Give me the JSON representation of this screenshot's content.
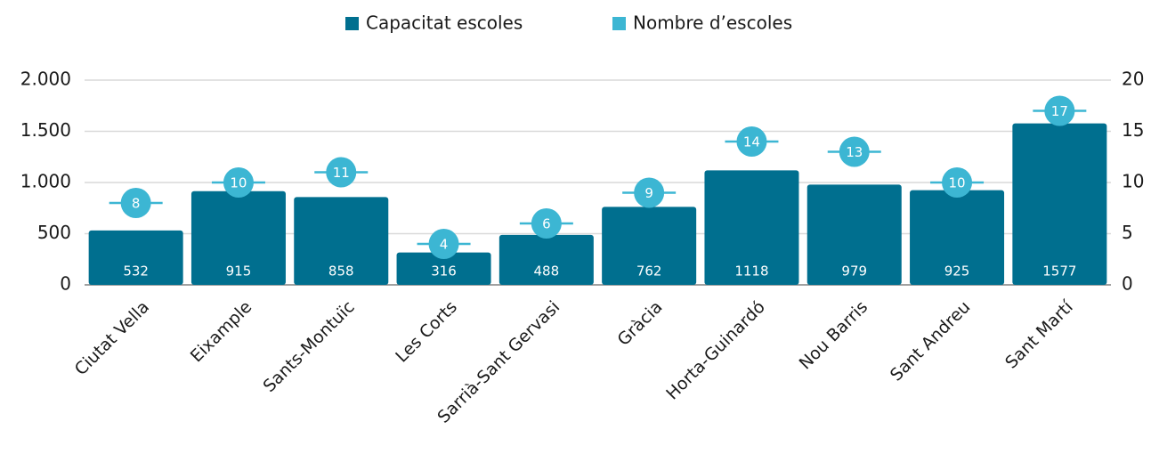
{
  "chart_data": {
    "type": "bar",
    "categories": [
      "Ciutat Vella",
      "Eixample",
      "Sants-Montuïc",
      "Les Corts",
      "Sarrià-Sant Gervasi",
      "Gràcia",
      "Horta-Guinardó",
      "Nou Barris",
      "Sant Andreu",
      "Sant Martí"
    ],
    "series": [
      {
        "name": "Capacitat escoles",
        "color": "#006f8f",
        "values": [
          532,
          915,
          858,
          316,
          488,
          762,
          1118,
          979,
          925,
          1577
        ]
      },
      {
        "name": "Nombre d’escoles",
        "color": "#3cb6d3",
        "axis": "y2",
        "values": [
          8,
          10,
          11,
          4,
          6,
          9,
          14,
          13,
          10,
          17
        ]
      }
    ],
    "ylim": [
      0,
      2000
    ],
    "yticks": [
      0,
      500,
      {
        "value": 1000,
        "label": "1.000"
      },
      {
        "value": 1500,
        "label": "1.500"
      },
      {
        "value": 2000,
        "label": "2.000"
      }
    ],
    "y2lim": [
      0,
      20
    ],
    "y2ticks": [
      0,
      5,
      10,
      15,
      20
    ],
    "grid": true,
    "legend": "top"
  }
}
